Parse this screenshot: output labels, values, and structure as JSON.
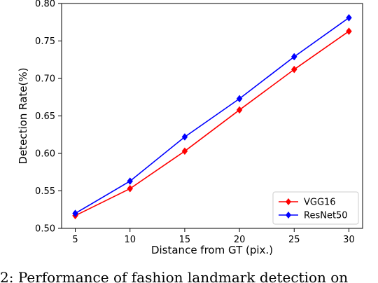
{
  "chart_data": {
    "type": "line",
    "x": [
      5,
      10,
      15,
      20,
      25,
      30
    ],
    "series": [
      {
        "name": "VGG16",
        "color": "#ff0000",
        "marker": "diamond",
        "values": [
          0.517,
          0.553,
          0.603,
          0.658,
          0.712,
          0.763
        ]
      },
      {
        "name": "ResNet50",
        "color": "#0000ff",
        "marker": "diamond",
        "values": [
          0.52,
          0.563,
          0.622,
          0.673,
          0.729,
          0.781
        ]
      }
    ],
    "xlabel": "Distance from GT (pix.)",
    "ylabel": "Detection Rate(%)",
    "xticks": [
      "5",
      "10",
      "15",
      "20",
      "25",
      "30"
    ],
    "yticks": [
      "0.50",
      "0.55",
      "0.60",
      "0.65",
      "0.70",
      "0.75",
      "0.80"
    ],
    "xlim": [
      3.75,
      31.25
    ],
    "ylim": [
      0.5,
      0.8
    ],
    "grid": false,
    "legend_position": "lower-right"
  },
  "caption": "2: Performance of fashion landmark detection on"
}
